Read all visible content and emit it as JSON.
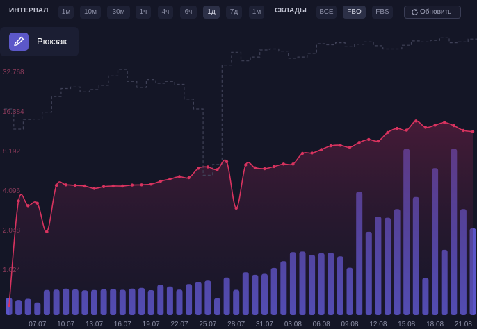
{
  "toolbar": {
    "interval_label": "ИНТЕРВАЛ",
    "intervals": [
      "1м",
      "10м",
      "30м",
      "1ч",
      "4ч",
      "6ч",
      "1д",
      "7д",
      "1м"
    ],
    "active_interval": "1д",
    "warehouses_label": "СКЛАДЫ",
    "warehouses": [
      "ВСЕ",
      "FBO",
      "FBS"
    ],
    "active_warehouse": "FBO",
    "refresh_label": "Обновить"
  },
  "product": {
    "name": "Рюкзак",
    "icon": "paintbrush-icon"
  },
  "colors": {
    "bars": "#5a55c8",
    "line": "#d8335f",
    "stock": "#3f4157",
    "accent": "#5c58c9"
  },
  "chart_data": {
    "type": "line",
    "y_scale": "log2",
    "yticks": [
      "1.024",
      "2.048",
      "4.096",
      "8.192",
      "16.384",
      "32.768"
    ],
    "ylim": [
      512,
      65536
    ],
    "xticks": [
      "07.07",
      "10.07",
      "13.07",
      "16.07",
      "19.07",
      "22.07",
      "25.07",
      "28.07",
      "31.07",
      "03.08",
      "06.08",
      "09.08",
      "12.08",
      "15.08",
      "18.08",
      "21.08"
    ],
    "x": [
      "04.07",
      "05.07",
      "06.07",
      "07.07",
      "08.07",
      "09.07",
      "10.07",
      "11.07",
      "12.07",
      "13.07",
      "14.07",
      "15.07",
      "16.07",
      "17.07",
      "18.07",
      "19.07",
      "20.07",
      "21.07",
      "22.07",
      "23.07",
      "24.07",
      "25.07",
      "26.07",
      "27.07",
      "28.07",
      "29.07",
      "30.07",
      "31.07",
      "01.08",
      "02.08",
      "03.08",
      "04.08",
      "05.08",
      "06.08",
      "07.08",
      "08.08",
      "09.08",
      "10.08",
      "11.08",
      "12.08",
      "13.08",
      "14.08",
      "15.08",
      "16.08",
      "17.08",
      "18.08",
      "19.08",
      "20.08",
      "21.08",
      "22.08"
    ],
    "series": [
      {
        "kind": "bar",
        "values": [
          900,
          790,
          850,
          660,
          1310,
          1330,
          1380,
          1340,
          1290,
          1310,
          1350,
          1360,
          1320,
          1380,
          1420,
          1300,
          1580,
          1490,
          1330,
          1620,
          1720,
          1800,
          880,
          1960,
          1320,
          2230,
          2100,
          2150,
          2460,
          2810,
          3280,
          3310,
          3130,
          3230,
          3240,
          3060,
          2470,
          6420,
          4340,
          5130,
          5070,
          5520,
          8650,
          6150,
          1940,
          7650,
          3400,
          8650,
          5520,
          4520
        ],
        "scale": "linear",
        "max": 9500
      },
      {
        "kind": "line",
        "values": [
          590,
          3700,
          3400,
          3550,
          2150,
          4850,
          4900,
          4850,
          4800,
          4600,
          4750,
          4800,
          4800,
          4880,
          4900,
          4960,
          5220,
          5420,
          5650,
          5550,
          6550,
          6700,
          6400,
          7350,
          3250,
          6950,
          6600,
          6500,
          6750,
          7050,
          7050,
          8500,
          8550,
          9100,
          9700,
          9800,
          9450,
          10300,
          10850,
          10550,
          12250,
          13150,
          12750,
          15000,
          13400,
          13900,
          14600,
          13800,
          12700,
          12450
        ]
      },
      {
        "kind": "stock-line",
        "values": [
          18500,
          13000,
          15400,
          15500,
          17500,
          23000,
          26500,
          27200,
          25000,
          26000,
          28000,
          33000,
          37000,
          30000,
          27000,
          31000,
          29000,
          30000,
          28500,
          22000,
          18500,
          5800,
          7000,
          40000,
          50000,
          43000,
          46000,
          52000,
          53000,
          51000,
          45000,
          46000,
          49000,
          58000,
          57000,
          59000,
          55000,
          57500,
          60000,
          56000,
          53000,
          53000,
          56500,
          61000,
          60000,
          61500,
          65000,
          59000,
          60000,
          63000
        ]
      }
    ]
  }
}
